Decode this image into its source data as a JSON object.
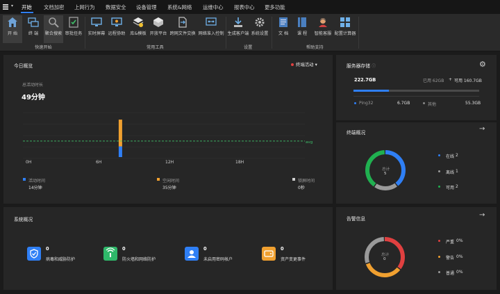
{
  "menubar": {
    "items": [
      {
        "label": "开始",
        "active": true
      },
      {
        "label": "文档加密"
      },
      {
        "label": "上网行为"
      },
      {
        "label": "数据安全"
      },
      {
        "label": "设备管理"
      },
      {
        "label": "系统&网络"
      },
      {
        "label": "运维中心"
      },
      {
        "label": "报表中心"
      },
      {
        "label": "更多功能"
      }
    ]
  },
  "ribbon": {
    "buttons": [
      {
        "label": "开 始",
        "icon": "home-icon"
      },
      {
        "label": "终 端",
        "icon": "terminals-icon"
      },
      {
        "label": "聚合搜索",
        "icon": "search-icon"
      },
      {
        "label": "审批任务",
        "icon": "approval-icon"
      },
      {
        "label": "实时屏幕",
        "icon": "monitor-icon"
      },
      {
        "label": "远程协助",
        "icon": "remote-assist-icon"
      },
      {
        "label": "库&模板",
        "icon": "library-icon"
      },
      {
        "label": "开放平台",
        "icon": "open-platform-icon"
      },
      {
        "label": "跨网文件交换",
        "icon": "file-exchange-icon"
      },
      {
        "label": "网络准入控制",
        "icon": "network-access-icon"
      },
      {
        "label": "生成客户端",
        "icon": "download-client-icon"
      },
      {
        "label": "系统设置",
        "icon": "gear-icon"
      },
      {
        "label": "文 档",
        "icon": "document-icon"
      },
      {
        "label": "课 程",
        "icon": "course-icon"
      },
      {
        "label": "智能客服",
        "icon": "support-agent-icon"
      },
      {
        "label": "配置计算器",
        "icon": "calculator-icon"
      }
    ],
    "groups": [
      "快速开始",
      "常用工具",
      "设置",
      "帮助支持"
    ]
  },
  "today": {
    "title": "今日概览",
    "filter": "终端活动",
    "total_label": "总活动时长",
    "total_value": "49分钟",
    "avg_label": "avg",
    "x_ticks": [
      "0H",
      "6H",
      "12H",
      "18H"
    ],
    "legend": [
      {
        "label": "活动时间",
        "value": "14分钟",
        "color": "#2f7ff5"
      },
      {
        "label": "空闲时间",
        "value": "35分钟",
        "color": "#f0a030"
      },
      {
        "label": "锁屏时间",
        "value": "0秒",
        "color": "#cfcfcf"
      }
    ]
  },
  "chart_data": {
    "type": "bar",
    "x_ticks": [
      "0H",
      "6H",
      "12H",
      "18H"
    ],
    "series": [
      {
        "name": "活动时间",
        "values": [
          14
        ]
      },
      {
        "name": "空闲时间",
        "values": [
          35
        ]
      },
      {
        "name": "锁屏时间",
        "values": [
          0
        ]
      }
    ],
    "avg_line": "avg"
  },
  "storage": {
    "title": "服务器存储",
    "total": "222.7GB",
    "used_label": "已用 62GB",
    "plus": "+",
    "avail_label": "可用 160.7GB",
    "used_fraction": 0.28,
    "items": [
      {
        "label": "Ping32",
        "value": "6.7GB",
        "color": "#2f7ff5"
      },
      {
        "label": "其他",
        "value": "55.3GB",
        "color": "#888888"
      }
    ]
  },
  "terminal": {
    "title": "终端概况",
    "center_label": "总计",
    "center_value": "5",
    "legend": [
      {
        "label": "在线",
        "value": "2",
        "color": "#2f7ff5",
        "fraction": 0.4
      },
      {
        "label": "离线",
        "value": "1",
        "color": "#9a9a9a",
        "fraction": 0.2
      },
      {
        "label": "可用",
        "value": "2",
        "color": "#20b050",
        "fraction": 0.4
      }
    ]
  },
  "system": {
    "title": "系统概况",
    "items": [
      {
        "value": "0",
        "label": "病毒和威胁防护",
        "color": "#2f7ff5",
        "icon": "shield-icon"
      },
      {
        "value": "0",
        "label": "防火墙和网络防护",
        "color": "#2fb86a",
        "icon": "wifi-icon"
      },
      {
        "value": "0",
        "label": "未启用密码帐户",
        "color": "#2f7ff5",
        "icon": "user-icon"
      },
      {
        "value": "0",
        "label": "资产变更事件",
        "color": "#f0a030",
        "icon": "hard-drive-icon"
      }
    ]
  },
  "alerts": {
    "title": "告警信息",
    "center_label": "总计",
    "center_value": "0",
    "legend": [
      {
        "label": "严重",
        "value": "0%",
        "color": "#e04040"
      },
      {
        "label": "警告",
        "value": "0%",
        "color": "#f0a030"
      },
      {
        "label": "普通",
        "value": "0%",
        "color": "#9a9a9a"
      }
    ]
  }
}
